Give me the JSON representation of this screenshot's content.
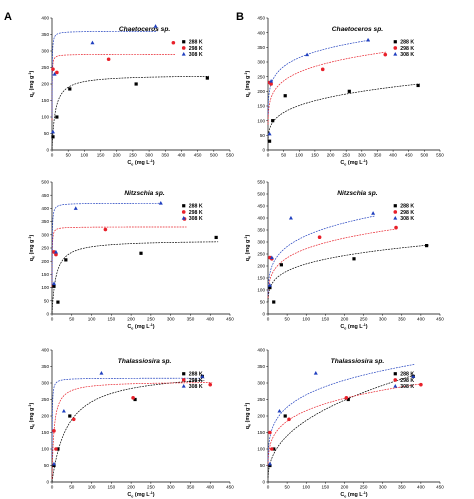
{
  "panel_letters": [
    "A",
    "B"
  ],
  "colors": {
    "288 K": "#000000",
    "298 K": "#e8202a",
    "308 K": "#1f3fbf"
  },
  "chart_data": [
    {
      "id": "A1",
      "column": "A",
      "row": 0,
      "type": "scatter",
      "title": "Chaetoceros sp.",
      "xlabel_main": "C",
      "xlabel_sub": "e",
      "xlabel_unit": " (mg L",
      "xlabel_end": ")",
      "ylabel_main": "q",
      "ylabel_sub": "e",
      "ylabel_unit": " (mg g",
      "ylabel_end": ")",
      "xlim": [
        0,
        550
      ],
      "ylim": [
        0,
        400
      ],
      "xticks": [
        0,
        50,
        100,
        150,
        200,
        250,
        300,
        350,
        400,
        450,
        500,
        550
      ],
      "yticks": [
        0,
        50,
        100,
        150,
        200,
        250,
        300,
        350,
        400
      ],
      "legend_position": "right",
      "series": [
        {
          "name": "288 K",
          "marker": "square",
          "x": [
            3,
            15,
            55,
            260,
            480
          ],
          "y": [
            40,
            100,
            185,
            200,
            218
          ],
          "fit": {
            "model": "langmuir",
            "qm": 228,
            "k": 0.1
          }
        },
        {
          "name": "298 K",
          "marker": "circle",
          "x": [
            3,
            15,
            175,
            375
          ],
          "y": [
            245,
            235,
            275,
            325
          ],
          "fit": {
            "model": "langmuir",
            "qm": 290,
            "k": 3
          }
        },
        {
          "name": "308 K",
          "marker": "triangle",
          "x": [
            3,
            8,
            125,
            320
          ],
          "y": [
            55,
            230,
            325,
            375
          ],
          "fit": {
            "model": "langmuir",
            "qm": 360,
            "k": 2.5
          }
        }
      ]
    },
    {
      "id": "B1",
      "column": "B",
      "row": 0,
      "type": "scatter",
      "title": "Chaetoceros sp.",
      "xlabel_main": "C",
      "xlabel_sub": "e",
      "xlabel_unit": " (mg L",
      "xlabel_end": ")",
      "ylabel_main": "q",
      "ylabel_sub": "e",
      "ylabel_unit": " (mg g",
      "ylabel_end": ")",
      "xlim": [
        0,
        550
      ],
      "ylim": [
        0,
        450
      ],
      "xticks": [
        0,
        50,
        100,
        150,
        200,
        250,
        300,
        350,
        400,
        450,
        500,
        550
      ],
      "yticks": [
        0,
        50,
        100,
        150,
        200,
        250,
        300,
        350,
        400,
        450
      ],
      "legend_position": "right",
      "series": [
        {
          "name": "288 K",
          "marker": "square",
          "x": [
            5,
            15,
            55,
            260,
            480
          ],
          "y": [
            30,
            100,
            185,
            200,
            220
          ],
          "fit": {
            "model": "freundlich",
            "kf": 48,
            "n": 4.0
          }
        },
        {
          "name": "298 K",
          "marker": "circle",
          "x": [
            5,
            10,
            175,
            375
          ],
          "y": [
            230,
            225,
            275,
            325
          ],
          "fit": {
            "model": "freundlich",
            "kf": 120,
            "n": 5.8
          }
        },
        {
          "name": "308 K",
          "marker": "triangle",
          "x": [
            5,
            10,
            125,
            320
          ],
          "y": [
            55,
            235,
            325,
            375
          ],
          "fit": {
            "model": "freundlich",
            "kf": 160,
            "n": 6.8
          }
        }
      ]
    },
    {
      "id": "A2",
      "column": "A",
      "row": 1,
      "type": "scatter",
      "title": "Nitzschia sp.",
      "xlabel_main": "C",
      "xlabel_sub": "e",
      "xlabel_unit": " (mg L",
      "xlabel_end": ")",
      "ylabel_main": "q",
      "ylabel_sub": "e",
      "ylabel_unit": " (mg g",
      "ylabel_end": ")",
      "xlim": [
        0,
        450
      ],
      "ylim": [
        0,
        500
      ],
      "xticks": [
        0,
        50,
        100,
        150,
        200,
        250,
        300,
        350,
        400,
        450
      ],
      "yticks": [
        0,
        50,
        100,
        150,
        200,
        250,
        300,
        350,
        400,
        450,
        500
      ],
      "legend_position": "right",
      "series": [
        {
          "name": "288 K",
          "marker": "square",
          "x": [
            5,
            15,
            35,
            225,
            415
          ],
          "y": [
            105,
            45,
            205,
            230,
            290
          ],
          "fit": {
            "model": "langmuir",
            "qm": 280,
            "k": 0.1
          }
        },
        {
          "name": "298 K",
          "marker": "circle",
          "x": [
            5,
            10,
            135,
            335
          ],
          "y": [
            235,
            225,
            320,
            360
          ],
          "fit": {
            "model": "langmuir",
            "qm": 330,
            "k": 3
          }
        },
        {
          "name": "308 K",
          "marker": "triangle",
          "x": [
            5,
            10,
            60,
            275
          ],
          "y": [
            115,
            235,
            400,
            420
          ],
          "fit": {
            "model": "langmuir",
            "qm": 420,
            "k": 2.5
          }
        }
      ]
    },
    {
      "id": "B2",
      "column": "B",
      "row": 1,
      "type": "scatter",
      "title": "Nitzschia sp.",
      "xlabel_main": "C",
      "xlabel_sub": "e",
      "xlabel_unit": " (mg L",
      "xlabel_end": ")",
      "ylabel_main": "q",
      "ylabel_sub": "e",
      "ylabel_unit": " (mg g",
      "ylabel_end": ")",
      "xlim": [
        0,
        450
      ],
      "ylim": [
        0,
        550
      ],
      "xticks": [
        0,
        50,
        100,
        150,
        200,
        250,
        300,
        350,
        400,
        450
      ],
      "yticks": [
        0,
        50,
        100,
        150,
        200,
        250,
        300,
        350,
        400,
        450,
        500,
        550
      ],
      "legend_position": "right",
      "series": [
        {
          "name": "288 K",
          "marker": "square",
          "x": [
            5,
            15,
            35,
            225,
            415
          ],
          "y": [
            110,
            50,
            205,
            230,
            285
          ],
          "fit": {
            "model": "freundlich",
            "kf": 75,
            "n": 4.5
          }
        },
        {
          "name": "298 K",
          "marker": "circle",
          "x": [
            5,
            10,
            135,
            335
          ],
          "y": [
            235,
            230,
            320,
            360
          ],
          "fit": {
            "model": "freundlich",
            "kf": 100,
            "n": 4.6
          }
        },
        {
          "name": "308 K",
          "marker": "triangle",
          "x": [
            5,
            10,
            60,
            275
          ],
          "y": [
            120,
            235,
            400,
            420
          ],
          "fit": {
            "model": "freundlich",
            "kf": 120,
            "n": 4.6
          }
        }
      ]
    },
    {
      "id": "A3",
      "column": "A",
      "row": 2,
      "type": "scatter",
      "title": "Thalassiosira sp.",
      "xlabel_main": "C",
      "xlabel_sub": "e",
      "xlabel_unit": " (mg L",
      "xlabel_end": ")",
      "ylabel_main": "q",
      "ylabel_sub": "e",
      "ylabel_unit": " (mg g",
      "ylabel_end": ")",
      "xlim": [
        0,
        450
      ],
      "ylim": [
        0,
        400
      ],
      "xticks": [
        0,
        50,
        100,
        150,
        200,
        250,
        300,
        350,
        400,
        450
      ],
      "yticks": [
        0,
        50,
        100,
        150,
        200,
        250,
        300,
        350,
        400
      ],
      "legend_position": "right",
      "series": [
        {
          "name": "288 K",
          "marker": "square",
          "x": [
            5,
            15,
            45,
            210,
            380
          ],
          "y": [
            50,
            100,
            200,
            250,
            320
          ],
          "fit": {
            "model": "langmuir",
            "qm": 340,
            "k": 0.025
          }
        },
        {
          "name": "298 K",
          "marker": "circle",
          "x": [
            5,
            10,
            55,
            205,
            400
          ],
          "y": [
            155,
            100,
            190,
            255,
            295
          ],
          "fit": {
            "model": "langmuir",
            "qm": 305,
            "k": 0.2
          }
        },
        {
          "name": "308 K",
          "marker": "triangle",
          "x": [
            5,
            30,
            125,
            380
          ],
          "y": [
            55,
            215,
            330,
            320
          ],
          "fit": {
            "model": "langmuir",
            "qm": 315,
            "k": 2
          }
        }
      ]
    },
    {
      "id": "B3",
      "column": "B",
      "row": 2,
      "type": "scatter",
      "title": "Thalassiosira sp.",
      "xlabel_main": "C",
      "xlabel_sub": "e",
      "xlabel_unit": " (mg L",
      "xlabel_end": ")",
      "ylabel_main": "q",
      "ylabel_sub": "e",
      "ylabel_unit": " (mg g",
      "ylabel_end": ")",
      "xlim": [
        0,
        450
      ],
      "ylim": [
        0,
        400
      ],
      "xticks": [
        0,
        50,
        100,
        150,
        200,
        250,
        300,
        350,
        400,
        450
      ],
      "yticks": [
        0,
        50,
        100,
        150,
        200,
        250,
        300,
        350,
        400
      ],
      "legend_position": "right",
      "series": [
        {
          "name": "288 K",
          "marker": "square",
          "x": [
            5,
            15,
            45,
            210,
            380
          ],
          "y": [
            50,
            100,
            200,
            250,
            320
          ],
          "fit": {
            "model": "freundlich",
            "kf": 28,
            "n": 2.43
          }
        },
        {
          "name": "298 K",
          "marker": "circle",
          "x": [
            5,
            10,
            55,
            205,
            400
          ],
          "y": [
            150,
            100,
            190,
            255,
            295
          ],
          "fit": {
            "model": "freundlich",
            "kf": 75,
            "n": 4.35
          }
        },
        {
          "name": "308 K",
          "marker": "triangle",
          "x": [
            5,
            30,
            125,
            380
          ],
          "y": [
            55,
            215,
            330,
            320
          ],
          "fit": {
            "model": "freundlich",
            "kf": 95,
            "n": 4.5
          }
        }
      ]
    }
  ]
}
